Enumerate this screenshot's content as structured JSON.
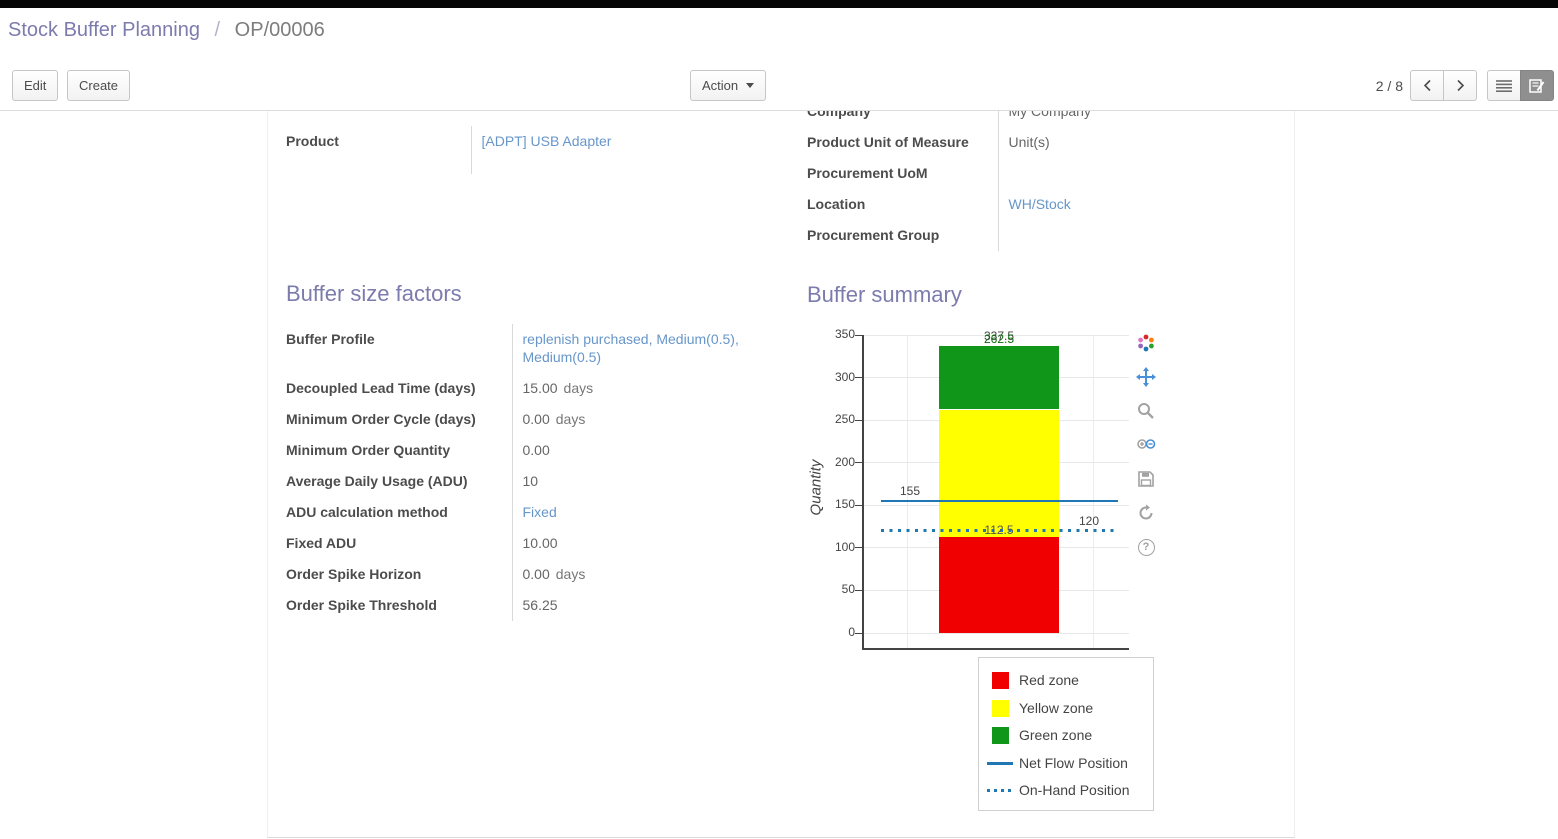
{
  "breadcrumb": {
    "primary": "Stock Buffer Planning",
    "separator": "/",
    "current": "OP/00006"
  },
  "control_panel": {
    "edit_label": "Edit",
    "create_label": "Create",
    "action_label": "Action",
    "pager": "2 / 8",
    "icons": [
      "caret-down-icon",
      "chevron-left-icon",
      "chevron-right-icon",
      "list-view-icon",
      "form-view-icon"
    ]
  },
  "fields": {
    "company": {
      "label": "Company",
      "value": "My Company"
    },
    "product": {
      "label": "Product",
      "value": "[ADPT] USB Adapter"
    },
    "product_uom": {
      "label": "Product Unit of Measure",
      "value": "Unit(s)"
    },
    "procurement_uom": {
      "label": "Procurement UoM",
      "value": ""
    },
    "location": {
      "label": "Location",
      "value": "WH/Stock"
    },
    "procurement_group": {
      "label": "Procurement Group",
      "value": ""
    }
  },
  "buffer_factors": {
    "heading": "Buffer size factors",
    "rows": [
      {
        "label": "Buffer Profile",
        "value": "replenish purchased, Medium(0.5), Medium(0.5)"
      },
      {
        "label": "Decoupled Lead Time (days)",
        "value": "15.00",
        "unit": "days"
      },
      {
        "label": "Minimum Order Cycle (days)",
        "value": "0.00",
        "unit": "days"
      },
      {
        "label": "Minimum Order Quantity",
        "value": "0.00"
      },
      {
        "label": "Average Daily Usage (ADU)",
        "value": "10"
      },
      {
        "label": "ADU calculation method",
        "value": "Fixed"
      },
      {
        "label": "Fixed ADU",
        "value": "10.00"
      },
      {
        "label": "Order Spike Horizon",
        "value": "0.00",
        "unit": "days"
      },
      {
        "label": "Order Spike Threshold",
        "value": "56.25"
      }
    ]
  },
  "buffer_summary": {
    "heading": "Buffer summary",
    "toolbar_icons": [
      "plotly-logo",
      "pan-icon",
      "zoom-icon",
      "zoom-in-out-icon",
      "save-icon",
      "reset-axes-icon",
      "help-icon"
    ]
  },
  "chart_data": {
    "type": "bar",
    "title": "",
    "xlabel": "",
    "ylabel": "Quantity",
    "ylim": [
      0,
      350
    ],
    "yticks": [
      0,
      50,
      100,
      150,
      200,
      250,
      300,
      350
    ],
    "grid": true,
    "legend_position": "bottom-right",
    "zones": [
      {
        "name": "Red zone",
        "from": 0,
        "to": 112.5,
        "color": "#f00000",
        "boundary_label": "112.5",
        "boundary_label_color": "#555555"
      },
      {
        "name": "Yellow zone",
        "from": 112.5,
        "to": 262.5,
        "color": "#ffff00"
      },
      {
        "name": "Green zone",
        "from": 262.5,
        "to": 337.5,
        "color": "#109618",
        "boundary_label": "262.5",
        "boundary_label_color": "#0c6b0c",
        "top_label": "337.5",
        "top_label_color": "#444444"
      }
    ],
    "reference_lines": [
      {
        "name": "Net Flow Position",
        "value": 155,
        "style": "solid",
        "color": "#1f77b4",
        "label": "155",
        "label_side": "left"
      },
      {
        "name": "On-Hand Position",
        "value": 120,
        "style": "dotted",
        "color": "#1f77b4",
        "label": "120",
        "label_side": "right"
      }
    ],
    "legend_items": [
      {
        "label": "Red zone",
        "type": "rect",
        "color": "#f00000"
      },
      {
        "label": "Yellow zone",
        "type": "rect",
        "color": "#ffff00"
      },
      {
        "label": "Green zone",
        "type": "rect",
        "color": "#109618"
      },
      {
        "label": "Net Flow Position",
        "type": "line",
        "color": "#1f77b4"
      },
      {
        "label": "On-Hand Position",
        "type": "dotted",
        "color": "#1f77b4"
      }
    ]
  }
}
